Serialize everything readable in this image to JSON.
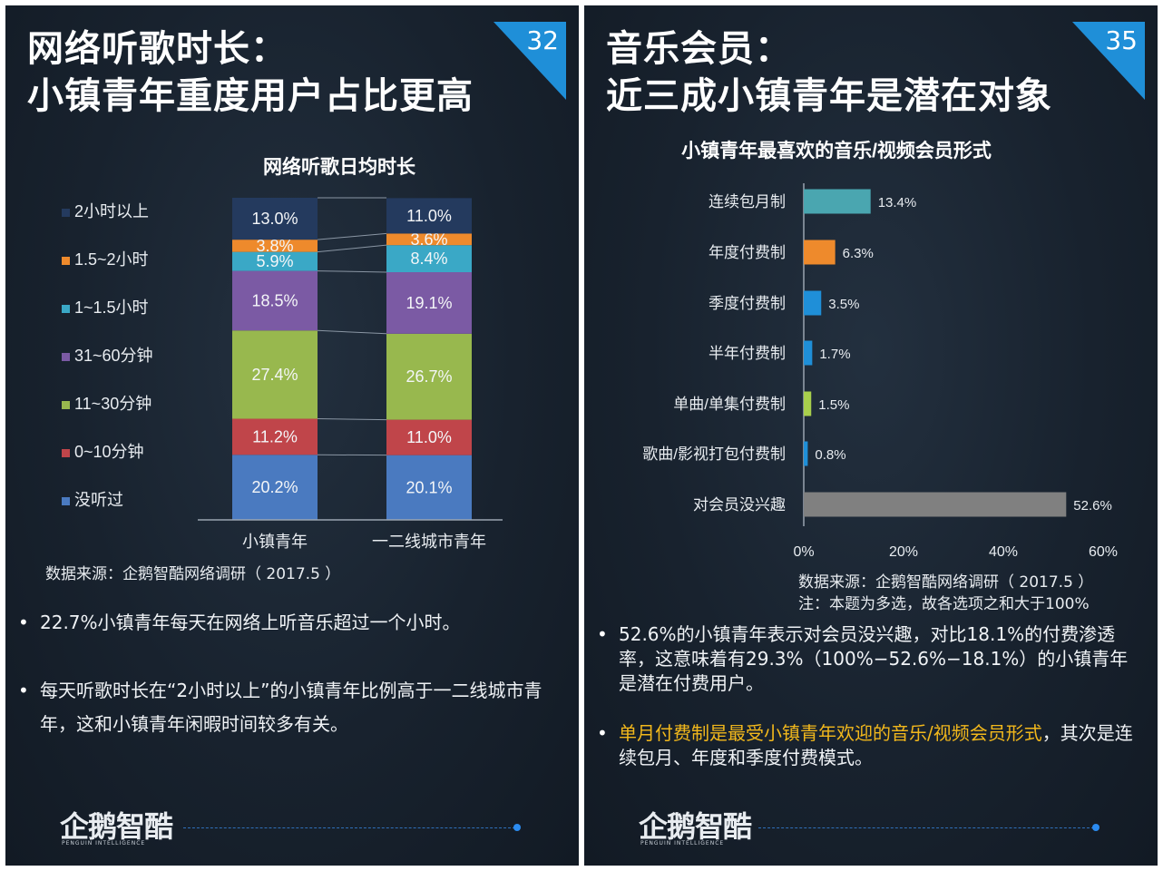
{
  "left_slide": {
    "title_line1": "网络听歌时长：",
    "title_line2": "小镇青年重度用户占比更高",
    "page_number": "32",
    "source": "数据来源：企鹅智酷网络调研（  2017.5  ）",
    "bullets": [
      "22.7%小镇青年每天在网络上听音乐超过一个小时。",
      "每天听歌时长在“2小时以上”的小镇青年比例高于一二线城市青年，这和小镇青年闲暇时间较多有关。"
    ],
    "brand": "企鹅智酷",
    "brand_sub": "PENGUIN INTELLIGENCE"
  },
  "right_slide": {
    "title_line1": "音乐会员：",
    "title_line2": "近三成小镇青年是潜在对象",
    "page_number": "35",
    "source": "数据来源：企鹅智酷网络调研（  2017.5  ）",
    "note": "注：本题为多选，故各选项之和大于100%",
    "bullet1": "52.6%的小镇青年表示对会员没兴趣，对比18.1%的付费渗透率，这意味着有29.3%（100%−52.6%−18.1%）的小镇青年是潜在付费用户。",
    "bullet2_highlight": "单月付费制是最受小镇青年欢迎的音乐/视频会员形式",
    "bullet2_rest": "，其次是连续包月、年度和季度付费模式。",
    "brand": "企鹅智酷",
    "brand_sub": "PENGUIN INTELLIGENCE"
  },
  "colors": {
    "accent_blue": "#1f8fd8",
    "highlight_yellow": "#f2b81c"
  },
  "chart_data": [
    {
      "type": "bar",
      "stacked": true,
      "title": "网络听歌日均时长",
      "categories": [
        "小镇青年",
        "一二线城市青年"
      ],
      "series": [
        {
          "name": "没听过",
          "values": [
            20.2,
            20.1
          ],
          "color": "#4a7ac0"
        },
        {
          "name": "0~10分钟",
          "values": [
            11.2,
            11.0
          ],
          "color": "#c0454a"
        },
        {
          "name": "11~30分钟",
          "values": [
            27.4,
            26.7
          ],
          "color": "#98b84e"
        },
        {
          "name": "31~60分钟",
          "values": [
            18.5,
            19.1
          ],
          "color": "#7b5aa4"
        },
        {
          "name": "1~1.5小时",
          "values": [
            5.9,
            8.4
          ],
          "color": "#3aa8c6"
        },
        {
          "name": "1.5~2小时",
          "values": [
            3.8,
            3.6
          ],
          "color": "#ee8a2c"
        },
        {
          "name": "2小时以上",
          "values": [
            13.0,
            11.0
          ],
          "color": "#243a5e"
        }
      ],
      "data_labels": [
        [
          "20.2%",
          "20.1%"
        ],
        [
          "11.2%",
          "11.0%"
        ],
        [
          "27.4%",
          "26.7%"
        ],
        [
          "18.5%",
          "19.1%"
        ],
        [
          "5.9%",
          "8.4%"
        ],
        [
          "3.8%",
          "3.6%"
        ],
        [
          "13.0%",
          "11.0%"
        ]
      ],
      "legend_order": [
        "2小时以上",
        "1.5~2小时",
        "1~1.5小时",
        "31~60分钟",
        "11~30分钟",
        "0~10分钟",
        "没听过"
      ],
      "legend_position": "left",
      "ylim": [
        0,
        100
      ]
    },
    {
      "type": "bar",
      "orientation": "horizontal",
      "title": "小镇青年最喜欢的音乐/视频会员形式",
      "categories": [
        "连续包月制",
        "年度付费制",
        "季度付费制",
        "半年付费制",
        "单曲/单集付费制",
        "歌曲/影视打包付费制",
        "对会员没兴趣"
      ],
      "values": [
        13.4,
        6.3,
        3.5,
        1.7,
        1.5,
        0.8,
        52.6
      ],
      "value_labels": [
        "13.4%",
        "6.3%",
        "3.5%",
        "1.7%",
        "1.5%",
        "0.8%",
        "52.6%"
      ],
      "colors": [
        "#4aa6b0",
        "#ee8a2c",
        "#1f8fd8",
        "#1f8fd8",
        "#a8cf4c",
        "#1f8fd8",
        "#808080"
      ],
      "xlim": [
        0,
        60
      ],
      "xticks": [
        0,
        20,
        40,
        60
      ],
      "xtick_labels": [
        "0%",
        "20%",
        "40%",
        "60%"
      ]
    }
  ]
}
